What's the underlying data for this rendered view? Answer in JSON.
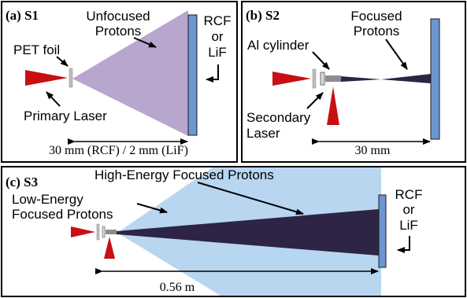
{
  "panels": [
    {
      "id": "S1",
      "tag": "(a) S1",
      "labels": {
        "protons": [
          "Unfocused",
          "Protons"
        ],
        "foil": "PET foil",
        "laser": "Primary Laser",
        "detector": [
          "RCF",
          "or",
          "LiF"
        ],
        "distance": "30 mm (RCF) / 2 mm (LiF)"
      }
    },
    {
      "id": "S2",
      "tag": "(b) S2",
      "labels": {
        "protons": [
          "Focused",
          "Protons"
        ],
        "cylinder": "Al cylinder",
        "laser": [
          "Secondary",
          "Laser"
        ],
        "distance": "30 mm"
      }
    },
    {
      "id": "S3",
      "tag": "(c) S3",
      "labels": {
        "high": "High-Energy Focused Protons",
        "low": [
          "Low-Energy",
          "Focused Protons"
        ],
        "detector": [
          "RCF",
          "or",
          "LiF"
        ],
        "distance": "0.56 m"
      }
    }
  ],
  "colors": {
    "laser": "#c80f14",
    "unfocused_cone": "#b8a6cf",
    "detector": "#6c96d2",
    "focused_beam": "#2e2446",
    "low_energy_cone": "#b8d6f0",
    "cylinder": "#8c8c8c",
    "foil": "#bdbdbd"
  }
}
